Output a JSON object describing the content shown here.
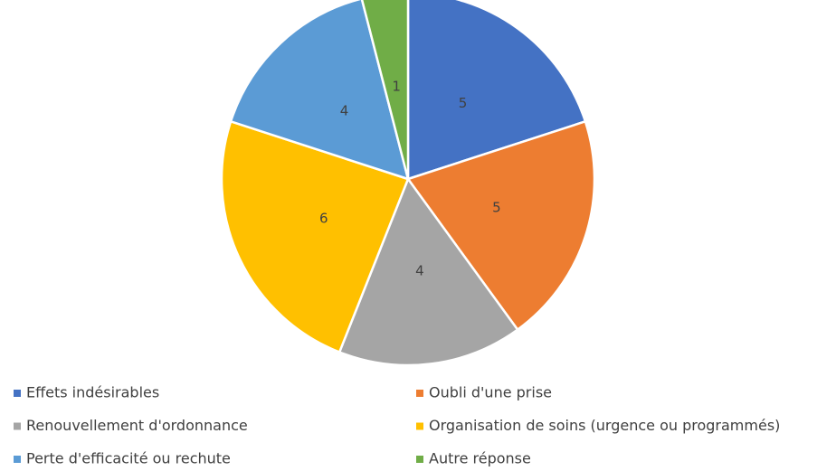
{
  "chart_data": {
    "type": "pie",
    "categories": [
      "Effets indésirables",
      "Oubli d'une prise",
      "Renouvellement d'ordonnance",
      "Organisation de soins (urgence ou programmés)",
      "Perte d'efficacité ou rechute",
      "Autre réponse"
    ],
    "values": [
      5,
      5,
      4,
      6,
      4,
      1
    ],
    "colors": [
      "#4472c4",
      "#ed7d31",
      "#a5a5a5",
      "#ffc000",
      "#5b9bd5",
      "#70ad47"
    ],
    "legend": "bottom"
  }
}
